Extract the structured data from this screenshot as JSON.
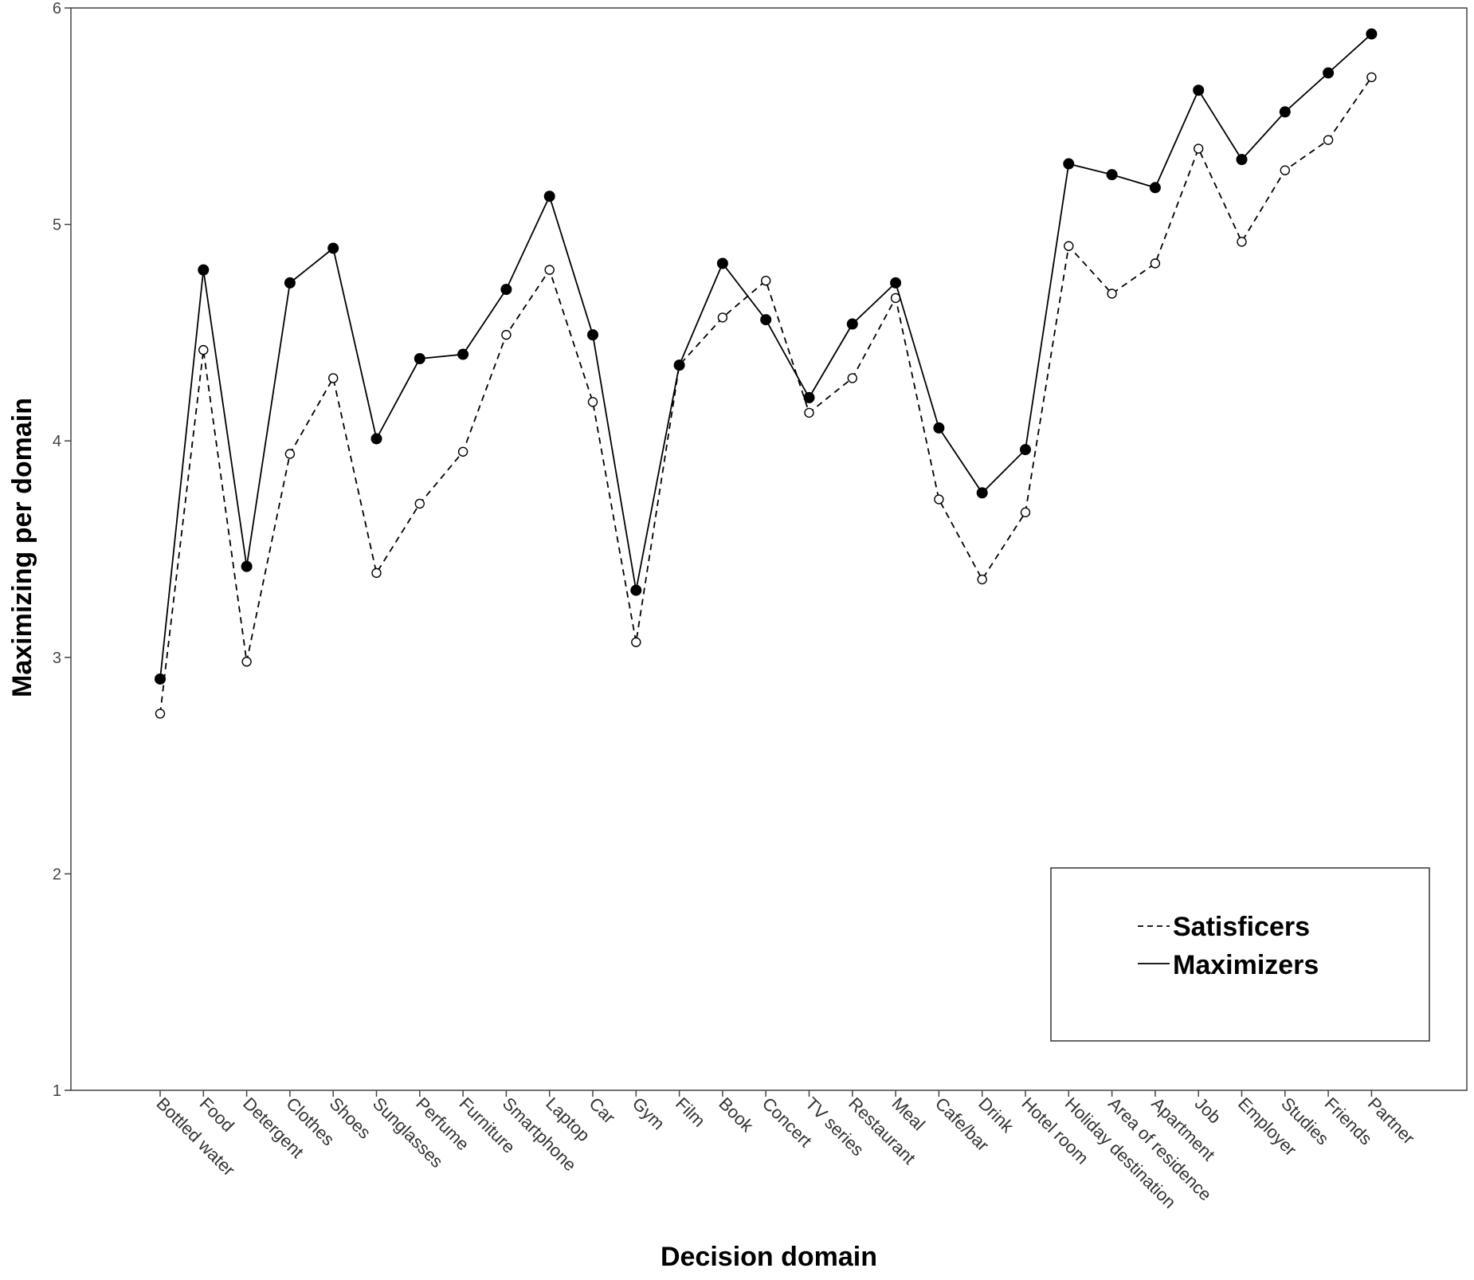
{
  "chart_data": {
    "type": "line",
    "xlabel": "Decision domain",
    "ylabel": "Maximizing per domain",
    "ylim": [
      1,
      6
    ],
    "yticks": [
      1,
      2,
      3,
      4,
      5,
      6
    ],
    "grid": false,
    "legend_position": "bottom-right",
    "categories": [
      "Bottled water",
      "Food",
      "Detergent",
      "Clothes",
      "Shoes",
      "Sunglasses",
      "Perfume",
      "Furniture",
      "Smartphone",
      "Laptop",
      "Car",
      "Gym",
      "Film",
      "Book",
      "Concert",
      "TV series",
      "Restaurant",
      "Meal",
      "Cafe/bar",
      "Drink",
      "Hotel room",
      "Holiday destination",
      "Area of residence",
      "Apartment",
      "Job",
      "Employer",
      "Studies",
      "Friends",
      "Partner"
    ],
    "series": [
      {
        "name": "Satisficers",
        "style": "dashed",
        "marker": "open-circle",
        "color": "#000000",
        "values": [
          2.74,
          4.42,
          2.98,
          3.94,
          4.29,
          3.39,
          3.71,
          3.95,
          4.49,
          4.79,
          4.18,
          3.07,
          4.35,
          4.57,
          4.74,
          4.13,
          4.29,
          4.66,
          3.73,
          3.36,
          3.67,
          4.9,
          4.68,
          4.82,
          5.35,
          4.92,
          5.25,
          5.39,
          5.68
        ]
      },
      {
        "name": "Maximizers",
        "style": "solid",
        "marker": "filled-circle",
        "color": "#000000",
        "values": [
          2.9,
          4.79,
          3.42,
          4.73,
          4.89,
          4.01,
          4.38,
          4.4,
          4.7,
          5.13,
          4.49,
          3.31,
          4.35,
          4.82,
          4.56,
          4.2,
          4.54,
          4.73,
          4.06,
          3.76,
          3.96,
          5.28,
          5.23,
          5.17,
          5.62,
          5.3,
          5.52,
          5.7,
          5.88
        ]
      }
    ]
  }
}
